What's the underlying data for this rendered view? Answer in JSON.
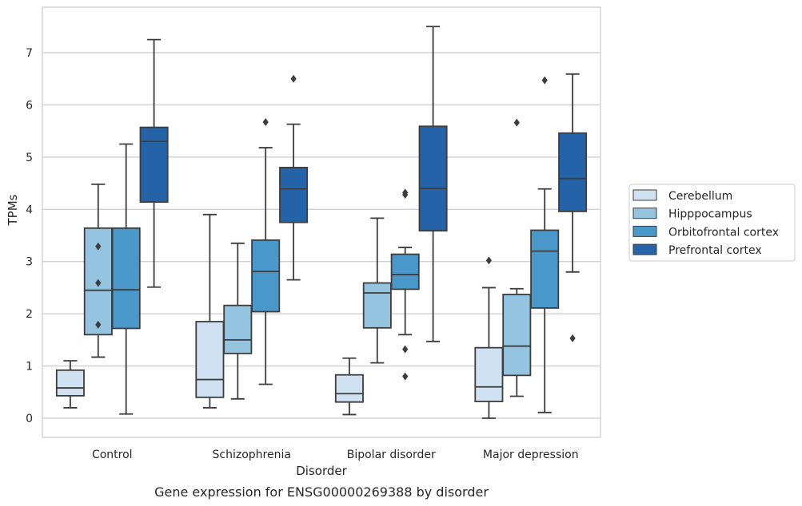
{
  "caption": "Gene expression for ENSG00000269388 by disorder",
  "chart_data": {
    "type": "boxplot",
    "xlabel": "Disorder",
    "ylabel": "TPMs",
    "ylim": [
      -0.35,
      7.9
    ],
    "yticks": [
      0,
      1,
      2,
      3,
      4,
      5,
      6,
      7
    ],
    "grid": "horizontal",
    "legend_position": "right",
    "categories": [
      "Control",
      "Schizophrenia",
      "Bipolar disorder",
      "Major depression"
    ],
    "series": [
      {
        "name": "Cerebellum",
        "color": "#d0e1f2",
        "boxes": [
          {
            "whislo": 0.2,
            "q1": 0.43,
            "med": 0.58,
            "q3": 0.92,
            "whishi": 1.1,
            "fliers": []
          },
          {
            "whislo": 0.2,
            "q1": 0.4,
            "med": 0.74,
            "q3": 1.85,
            "whishi": 3.9,
            "fliers": []
          },
          {
            "whislo": 0.07,
            "q1": 0.31,
            "med": 0.47,
            "q3": 0.83,
            "whishi": 1.15,
            "fliers": []
          },
          {
            "whislo": 0.0,
            "q1": 0.32,
            "med": 0.6,
            "q3": 1.35,
            "whishi": 2.5,
            "fliers": [
              3.02
            ]
          }
        ]
      },
      {
        "name": "Hipppocampus",
        "color": "#94c4df",
        "boxes": [
          {
            "whislo": 1.17,
            "q1": 1.6,
            "med": 2.45,
            "q3": 3.64,
            "whishi": 4.48,
            "fliers": [
              3.29,
              2.59,
              1.79
            ]
          },
          {
            "whislo": 0.37,
            "q1": 1.24,
            "med": 1.5,
            "q3": 2.16,
            "whishi": 3.35,
            "fliers": []
          },
          {
            "whislo": 1.06,
            "q1": 1.73,
            "med": 2.4,
            "q3": 2.59,
            "whishi": 3.83,
            "fliers": []
          },
          {
            "whislo": 0.42,
            "q1": 0.82,
            "med": 1.38,
            "q3": 2.37,
            "whishi": 2.48,
            "fliers": [
              5.66
            ]
          }
        ]
      },
      {
        "name": "Orbitofrontal cortex",
        "color": "#4a98c9",
        "boxes": [
          {
            "whislo": 0.08,
            "q1": 1.72,
            "med": 2.46,
            "q3": 3.64,
            "whishi": 5.25,
            "fliers": []
          },
          {
            "whislo": 0.65,
            "q1": 2.04,
            "med": 2.81,
            "q3": 3.41,
            "whishi": 5.18,
            "fliers": [
              5.67
            ]
          },
          {
            "whislo": 1.6,
            "q1": 2.47,
            "med": 2.75,
            "q3": 3.14,
            "whishi": 3.27,
            "fliers": [
              4.32,
              4.28,
              1.32,
              0.8
            ]
          },
          {
            "whislo": 0.11,
            "q1": 2.11,
            "med": 3.2,
            "q3": 3.6,
            "whishi": 4.39,
            "fliers": [
              6.47
            ]
          }
        ]
      },
      {
        "name": "Prefrontal cortex",
        "color": "#2563a8",
        "boxes": [
          {
            "whislo": 2.51,
            "q1": 4.14,
            "med": 5.3,
            "q3": 5.57,
            "whishi": 7.25,
            "fliers": []
          },
          {
            "whislo": 2.65,
            "q1": 3.75,
            "med": 4.39,
            "q3": 4.8,
            "whishi": 5.63,
            "fliers": [
              6.5
            ]
          },
          {
            "whislo": 1.47,
            "q1": 3.59,
            "med": 4.4,
            "q3": 5.59,
            "whishi": 7.5,
            "fliers": []
          },
          {
            "whislo": 2.8,
            "q1": 3.96,
            "med": 4.59,
            "q3": 5.46,
            "whishi": 6.59,
            "fliers": [
              1.53
            ]
          }
        ]
      }
    ]
  }
}
